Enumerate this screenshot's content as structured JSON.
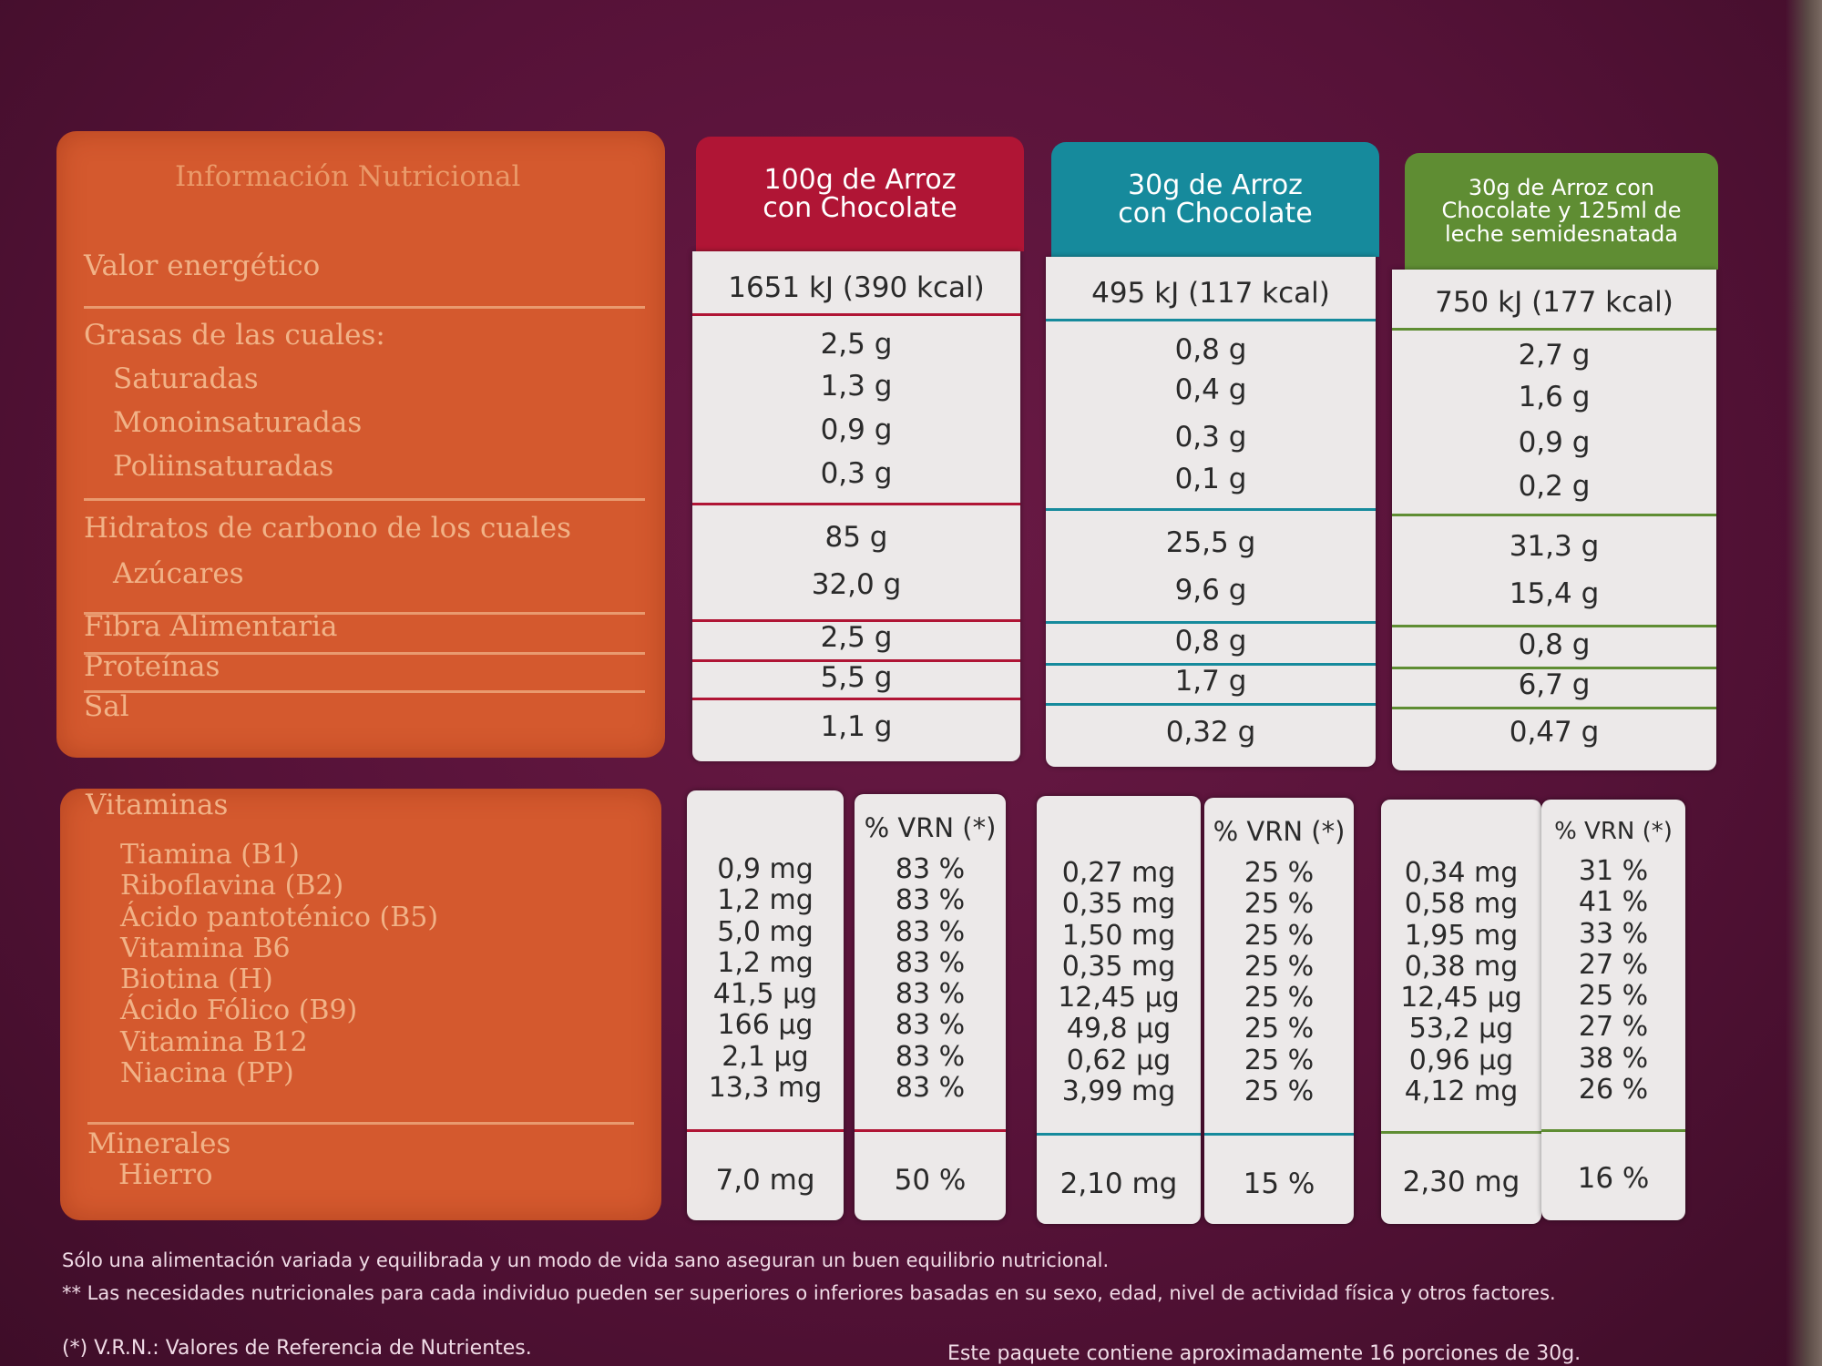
{
  "labels": {
    "title": "Información Nutricional",
    "energy": "Valor energético",
    "fats": "Grasas de las cuales:",
    "saturated": "Saturadas",
    "mono": "Monoinsaturadas",
    "poly": "Poliinsaturadas",
    "carbs": "Hidratos de carbono de los cuales",
    "sugars": "Azúcares",
    "fiber": "Fibra Alimentaria",
    "protein": "Proteínas",
    "salt": "Sal",
    "vitamins_title": "Vitaminas",
    "vitamins": [
      "Tiamina (B1)",
      "Riboflavina (B2)",
      "Ácido pantoténico (B5)",
      "Vitamina B6",
      "Biotina (H)",
      "Ácido Fólico (B9)",
      "Vitamina B12",
      "Niacina (PP)"
    ],
    "minerals_title": "Minerales",
    "iron": "Hierro"
  },
  "columns": [
    {
      "header": [
        "100g de Arroz",
        "con Chocolate"
      ],
      "color": "#b01535",
      "energy": "1651 kJ (390 kcal)",
      "fats": [
        "2,5 g",
        "1,3 g",
        "0,9 g",
        "0,3 g"
      ],
      "carbs": [
        "85 g",
        "32,0 g"
      ],
      "fiber": "2,5 g",
      "protein": "5,5 g",
      "salt": "1,1 g",
      "vrn_header": "% VRN (*)",
      "vitamins": [
        "0,9 mg",
        "1,2 mg",
        "5,0 mg",
        "1,2 mg",
        "41,5 µg",
        "166 µg",
        "2,1 µg",
        "13,3 mg"
      ],
      "vitamins_vrn": [
        "83 %",
        "83 %",
        "83 %",
        "83 %",
        "83 %",
        "83 %",
        "83 %",
        "83 %"
      ],
      "iron": "7,0 mg",
      "iron_vrn": "50 %"
    },
    {
      "header": [
        "30g de Arroz",
        "con Chocolate"
      ],
      "color": "#168a9c",
      "energy": "495 kJ (117 kcal)",
      "fats": [
        "0,8 g",
        "0,4 g",
        "0,3 g",
        "0,1 g"
      ],
      "carbs": [
        "25,5 g",
        "9,6 g"
      ],
      "fiber": "0,8 g",
      "protein": "1,7 g",
      "salt": "0,32 g",
      "vrn_header": "% VRN (*)",
      "vitamins": [
        "0,27 mg",
        "0,35 mg",
        "1,50 mg",
        "0,35 mg",
        "12,45 µg",
        "49,8 µg",
        "0,62 µg",
        "3,99 mg"
      ],
      "vitamins_vrn": [
        "25 %",
        "25 %",
        "25 %",
        "25 %",
        "25 %",
        "25 %",
        "25 %",
        "25 %"
      ],
      "iron": "2,10 mg",
      "iron_vrn": "15 %"
    },
    {
      "header": [
        "30g de Arroz con",
        "Chocolate y 125ml de",
        "leche semidesnatada"
      ],
      "color": "#5f8d33",
      "energy": "750 kJ (177 kcal)",
      "fats": [
        "2,7 g",
        "1,6 g",
        "0,9 g",
        "0,2 g"
      ],
      "carbs": [
        "31,3 g",
        "15,4 g"
      ],
      "fiber": "0,8 g",
      "protein": "6,7 g",
      "salt": "0,47 g",
      "vrn_header": "% VRN (*)",
      "vitamins": [
        "0,34 mg",
        "0,58 mg",
        "1,95 mg",
        "0,38 mg",
        "12,45 µg",
        "53,2 µg",
        "0,96 µg",
        "4,12 mg"
      ],
      "vitamins_vrn": [
        "31 %",
        "41 %",
        "33 %",
        "27 %",
        "25 %",
        "27 %",
        "38 %",
        "26 %"
      ],
      "iron": "2,30 mg",
      "iron_vrn": "16 %"
    }
  ],
  "footer": {
    "line1": "Sólo una alimentación variada y equilibrada y un modo de vida sano aseguran un buen equilibrio nutricional.",
    "line2": "** Las necesidades nutricionales para cada individuo pueden ser superiores o inferiores basadas en su sexo, edad, nivel de actividad física y otros factores.",
    "line3": "(*) V.R.N.: Valores de Referencia de Nutrientes.",
    "line4": "Este paquete contiene aproximadamente 16 porciones de 30g."
  }
}
